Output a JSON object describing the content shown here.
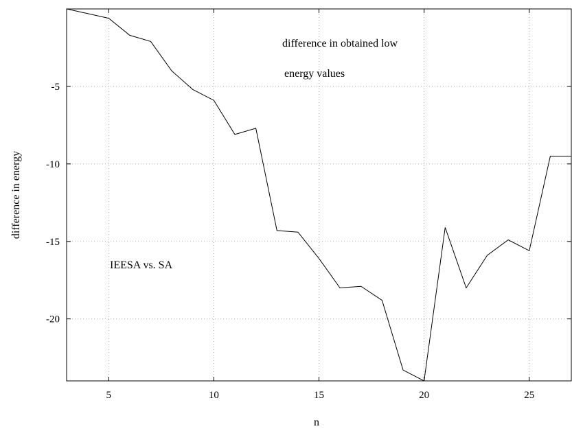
{
  "chart_data": {
    "type": "line",
    "title": "",
    "xlabel": "n",
    "ylabel": "difference in energy",
    "xlim": [
      3,
      27
    ],
    "ylim": [
      -24,
      0
    ],
    "xticks": [
      5,
      10,
      15,
      20,
      25
    ],
    "yticks": [
      -5,
      -10,
      -15,
      -20
    ],
    "grid": true,
    "series": [
      {
        "x": [
          3,
          4,
          5,
          6,
          7,
          8,
          9,
          10,
          11,
          12,
          13,
          14,
          15,
          16,
          17,
          18,
          19,
          20,
          21,
          22,
          23,
          24,
          25,
          26,
          27
        ],
        "y": [
          0,
          -0.3,
          -0.6,
          -1.7,
          -2.1,
          -4.0,
          -5.2,
          -5.9,
          -8.1,
          -7.7,
          -14.3,
          -14.4,
          -16.1,
          -18.0,
          -17.9,
          -18.8,
          -23.3,
          -24.0,
          -14.1,
          -18.0,
          -15.9,
          -14.9,
          -15.6,
          -9.5,
          -9.5
        ]
      }
    ],
    "annotations": [
      {
        "text": "difference in obtained low"
      },
      {
        "text": "energy values"
      },
      {
        "text": "IEESA vs. SA"
      }
    ]
  }
}
